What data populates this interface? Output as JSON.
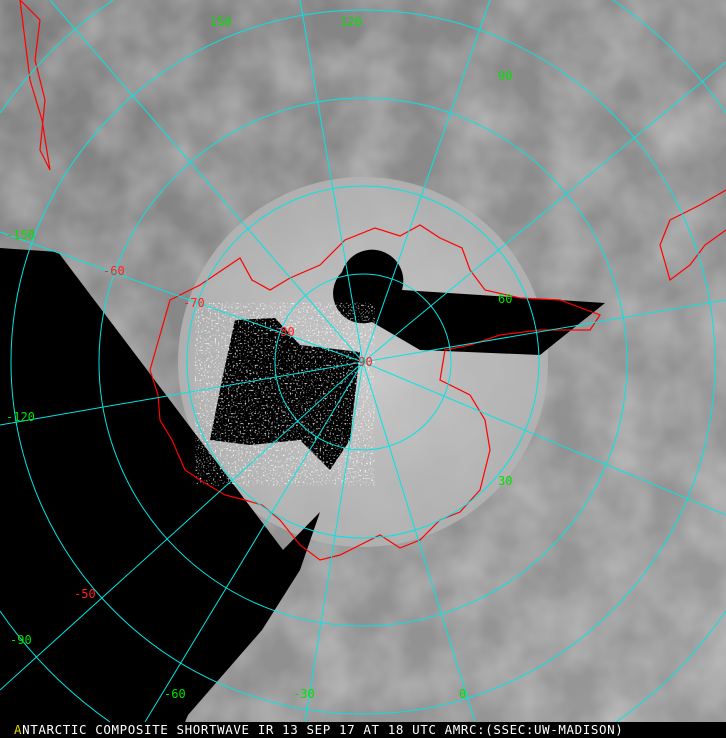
{
  "caption": {
    "first_letter": "A",
    "rest": "NTARCTIC COMPOSITE SHORTWAVE IR 13 SEP 17 AT 18 UTC AMRC:(SSEC:UW-MADISON)"
  },
  "longitude_labels": [
    "150",
    "120",
    "90",
    "60",
    "30",
    "0",
    "-30",
    "-60",
    "-90",
    "-120",
    "-150"
  ],
  "latitude_labels": [
    "-60",
    "-70",
    "-80",
    "-90",
    "-50"
  ],
  "colors": {
    "graticule": "#00e5e5",
    "coastline": "#ff0000",
    "longitude_label": "#00e000",
    "latitude_label": "#ff2020",
    "no_data": "#000000"
  }
}
